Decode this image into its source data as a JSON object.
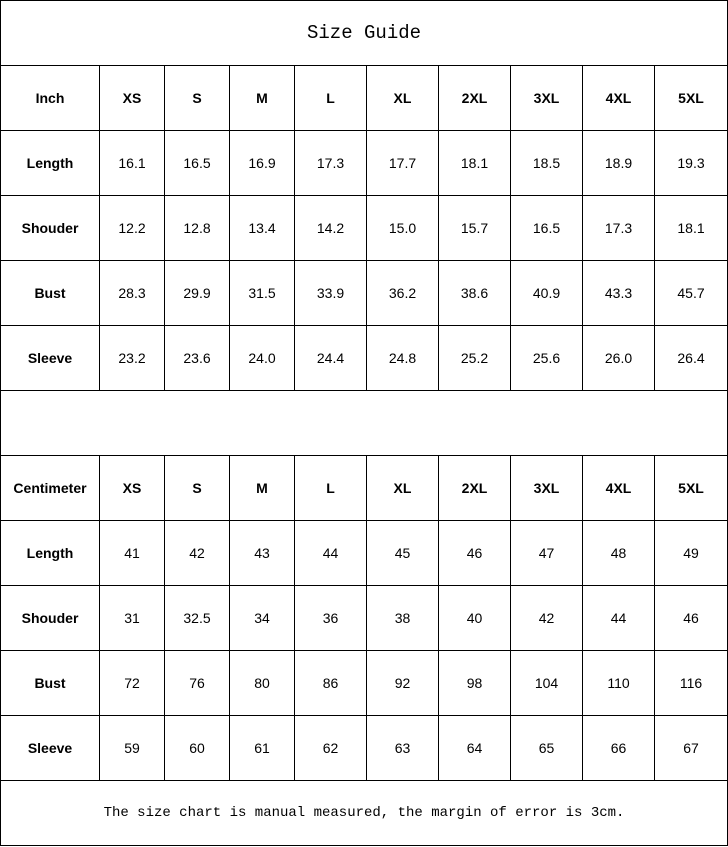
{
  "title": "Size Guide",
  "sizes": [
    "XS",
    "S",
    "M",
    "L",
    "XL",
    "2XL",
    "3XL",
    "4XL",
    "5XL"
  ],
  "inch": {
    "label": "Inch",
    "rows": [
      {
        "name": "Length",
        "values": [
          "16.1",
          "16.5",
          "16.9",
          "17.3",
          "17.7",
          "18.1",
          "18.5",
          "18.9",
          "19.3"
        ]
      },
      {
        "name": "Shouder",
        "values": [
          "12.2",
          "12.8",
          "13.4",
          "14.2",
          "15.0",
          "15.7",
          "16.5",
          "17.3",
          "18.1"
        ]
      },
      {
        "name": "Bust",
        "values": [
          "28.3",
          "29.9",
          "31.5",
          "33.9",
          "36.2",
          "38.6",
          "40.9",
          "43.3",
          "45.7"
        ]
      },
      {
        "name": "Sleeve",
        "values": [
          "23.2",
          "23.6",
          "24.0",
          "24.4",
          "24.8",
          "25.2",
          "25.6",
          "26.0",
          "26.4"
        ]
      }
    ]
  },
  "centimeter": {
    "label": "Centimeter",
    "rows": [
      {
        "name": "Length",
        "values": [
          "41",
          "42",
          "43",
          "44",
          "45",
          "46",
          "47",
          "48",
          "49"
        ]
      },
      {
        "name": "Shouder",
        "values": [
          "31",
          "32.5",
          "34",
          "36",
          "38",
          "40",
          "42",
          "44",
          "46"
        ]
      },
      {
        "name": "Bust",
        "values": [
          "72",
          "76",
          "80",
          "86",
          "92",
          "98",
          "104",
          "110",
          "116"
        ]
      },
      {
        "name": "Sleeve",
        "values": [
          "59",
          "60",
          "61",
          "62",
          "63",
          "64",
          "65",
          "66",
          "67"
        ]
      }
    ]
  },
  "note": "The size chart is manual measured, the margin of error is 3cm."
}
